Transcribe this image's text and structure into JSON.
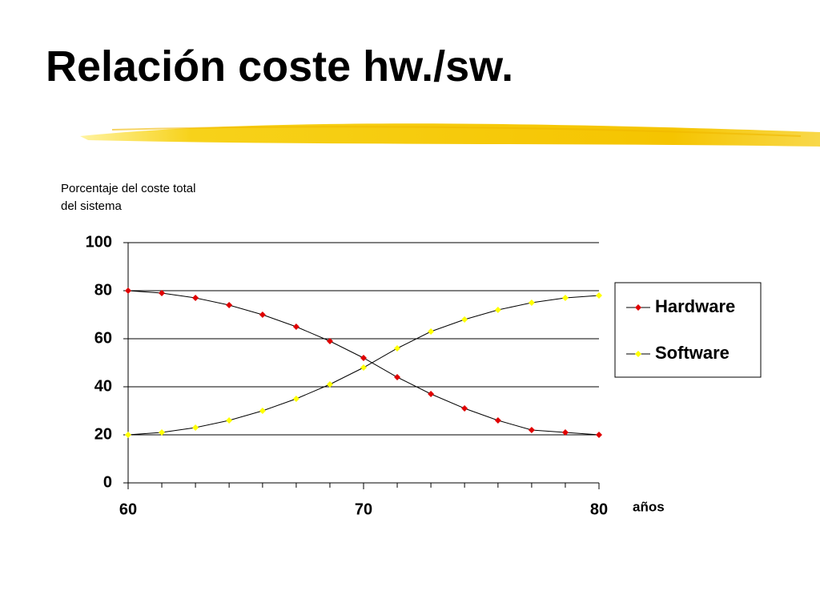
{
  "chart_data": {
    "type": "line",
    "title": "Relación coste hw./sw.",
    "y_label": "Porcentaje del coste total del sistema",
    "x_label": "años",
    "x": [
      60,
      61.43,
      62.86,
      64.29,
      65.71,
      67.14,
      68.57,
      70,
      71.43,
      72.86,
      74.29,
      75.71,
      77.14,
      78.57,
      80
    ],
    "series": [
      {
        "name": "Hardware",
        "color": "#e00000",
        "values": [
          80,
          79,
          77,
          74,
          70,
          65,
          59,
          52,
          44,
          37,
          31,
          26,
          22,
          21,
          20
        ]
      },
      {
        "name": "Software",
        "color": "#ffff00",
        "values": [
          20,
          21,
          23,
          26,
          30,
          35,
          41,
          48,
          56,
          63,
          68,
          72,
          75,
          77,
          78
        ]
      }
    ],
    "line_color": "#000000",
    "xlim": [
      60,
      80
    ],
    "xticks": [
      60,
      70,
      80
    ],
    "ylim": [
      0,
      100
    ],
    "yticks": [
      0,
      20,
      40,
      60,
      80,
      100
    ],
    "grid": true,
    "legend": "right"
  }
}
